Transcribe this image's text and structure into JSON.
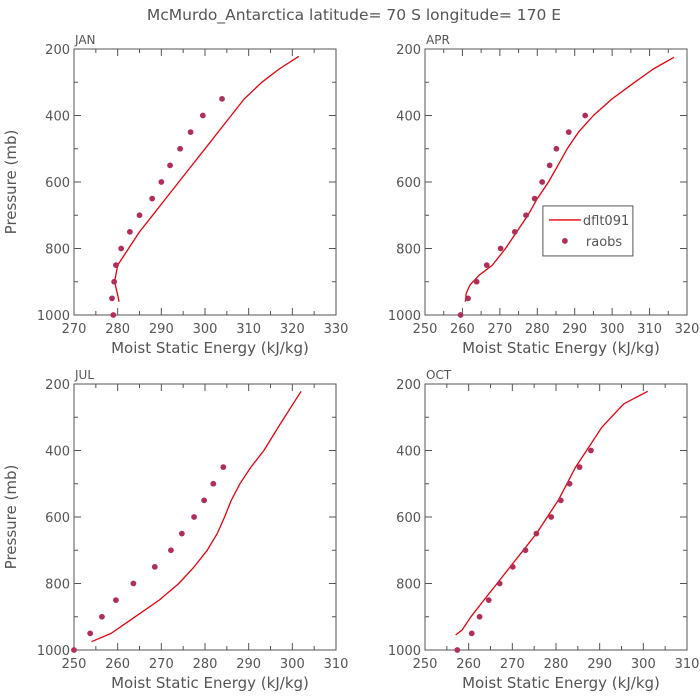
{
  "figure": {
    "title": "McMurdo_Antarctica   latitude= 70 S longitude= 170 E"
  },
  "chart_data": [
    {
      "type": "line",
      "panel_label": "JAN",
      "xlabel": "Moist Static Energy (kJ/kg)",
      "ylabel": "Pressure (mb)",
      "xlim": [
        270,
        330
      ],
      "ylim": [
        1000,
        200
      ],
      "xticks": [
        "270",
        "280",
        "290",
        "300",
        "310",
        "320",
        "330"
      ],
      "yticks": [
        "200",
        "400",
        "600",
        "800",
        "1000"
      ],
      "legend": null,
      "series": [
        {
          "kind": "line",
          "color": "#e8000b",
          "x": [
            280.3,
            280.1,
            279.3,
            280.0,
            282.5,
            285.0,
            288.0,
            291.0,
            294.0,
            297.0,
            300.0,
            303.0,
            306.0,
            309.0,
            313.0,
            317.0,
            321.5
          ],
          "y": [
            960,
            945,
            900,
            850,
            800,
            750,
            700,
            650,
            600,
            550,
            500,
            450,
            400,
            350,
            300,
            260,
            222
          ]
        },
        {
          "kind": "points",
          "color": "#b02f58",
          "x": [
            279.0,
            278.7,
            279.2,
            279.6,
            280.8,
            282.8,
            285.0,
            287.9,
            290.0,
            292.0,
            294.3,
            296.7,
            299.5,
            303.9
          ],
          "y": [
            1000,
            950,
            900,
            850,
            800,
            750,
            700,
            650,
            600,
            550,
            500,
            450,
            400,
            350
          ]
        }
      ]
    },
    {
      "type": "line",
      "panel_label": "APR",
      "xlabel": "Moist Static Energy (kJ/kg)",
      "ylabel": "",
      "xlim": [
        250,
        320
      ],
      "ylim": [
        1000,
        200
      ],
      "xticks": [
        "250",
        "260",
        "270",
        "280",
        "290",
        "300",
        "310",
        "320"
      ],
      "yticks": [
        "200",
        "400",
        "600",
        "800",
        "1000"
      ],
      "legend": {
        "position": "right",
        "entries": [
          {
            "label": "dflt091",
            "marker": "line"
          },
          {
            "label": "raobs",
            "marker": "dot"
          }
        ]
      },
      "series": [
        {
          "kind": "line",
          "name": "dflt091",
          "color": "#e8000b",
          "x": [
            260.8,
            261.0,
            262.0,
            264.5,
            268.0,
            271.5,
            274.5,
            277.5,
            280.0,
            283.0,
            285.5,
            288.0,
            291.0,
            295.0,
            300.0,
            306.0,
            311.0,
            316.5
          ],
          "y": [
            960,
            935,
            910,
            880,
            850,
            800,
            750,
            700,
            650,
            600,
            550,
            500,
            450,
            400,
            350,
            300,
            260,
            225
          ]
        },
        {
          "kind": "points",
          "name": "raobs",
          "color": "#b02f58",
          "x": [
            259.5,
            261.5,
            263.8,
            266.5,
            270.2,
            274.0,
            277.0,
            279.3,
            281.3,
            283.3,
            285.1,
            288.4,
            292.8
          ],
          "y": [
            1000,
            950,
            900,
            850,
            800,
            750,
            700,
            650,
            600,
            550,
            500,
            450,
            400
          ]
        }
      ]
    },
    {
      "type": "line",
      "panel_label": "JUL",
      "xlabel": "Moist Static Energy (kJ/kg)",
      "ylabel": "Pressure (mb)",
      "xlim": [
        250,
        310
      ],
      "ylim": [
        1000,
        200
      ],
      "xticks": [
        "250",
        "260",
        "270",
        "280",
        "290",
        "300",
        "310"
      ],
      "yticks": [
        "200",
        "400",
        "600",
        "800",
        "1000"
      ],
      "legend": null,
      "series": [
        {
          "kind": "line",
          "color": "#e8000b",
          "x": [
            254.0,
            258.5,
            264.0,
            269.5,
            274.0,
            277.5,
            280.5,
            282.8,
            284.5,
            286.0,
            288.0,
            290.5,
            293.5,
            297.0,
            302.0
          ],
          "y": [
            975,
            950,
            900,
            850,
            800,
            750,
            700,
            650,
            600,
            550,
            500,
            450,
            400,
            325,
            222
          ]
        },
        {
          "kind": "points",
          "color": "#b02f58",
          "x": [
            250.0,
            253.7,
            256.4,
            259.6,
            263.6,
            268.5,
            272.2,
            274.7,
            277.5,
            279.8,
            281.9,
            284.2
          ],
          "y": [
            1000,
            950,
            900,
            850,
            800,
            750,
            700,
            650,
            600,
            550,
            500,
            450
          ]
        }
      ]
    },
    {
      "type": "line",
      "panel_label": "OCT",
      "xlabel": "Moist Static Energy (kJ/kg)",
      "ylabel": "",
      "xlim": [
        250,
        310
      ],
      "ylim": [
        1000,
        200
      ],
      "xticks": [
        "250",
        "260",
        "270",
        "280",
        "290",
        "300",
        "310"
      ],
      "yticks": [
        "200",
        "400",
        "600",
        "800",
        "1000"
      ],
      "legend": null,
      "series": [
        {
          "kind": "line",
          "color": "#e8000b",
          "x": [
            257.0,
            258.5,
            260.5,
            263.5,
            266.5,
            269.5,
            272.5,
            275.5,
            278.0,
            280.5,
            282.5,
            284.5,
            287.0,
            290.5,
            295.5,
            301.0
          ],
          "y": [
            955,
            940,
            900,
            850,
            800,
            750,
            700,
            650,
            600,
            550,
            500,
            450,
            400,
            330,
            260,
            222
          ]
        },
        {
          "kind": "points",
          "color": "#b02f58",
          "x": [
            257.4,
            260.7,
            262.5,
            264.6,
            267.1,
            270.1,
            273.0,
            275.5,
            278.9,
            281.1,
            283.1,
            285.4,
            288.0
          ],
          "y": [
            1000,
            950,
            900,
            850,
            800,
            750,
            700,
            650,
            600,
            550,
            500,
            450,
            400
          ]
        }
      ]
    }
  ]
}
